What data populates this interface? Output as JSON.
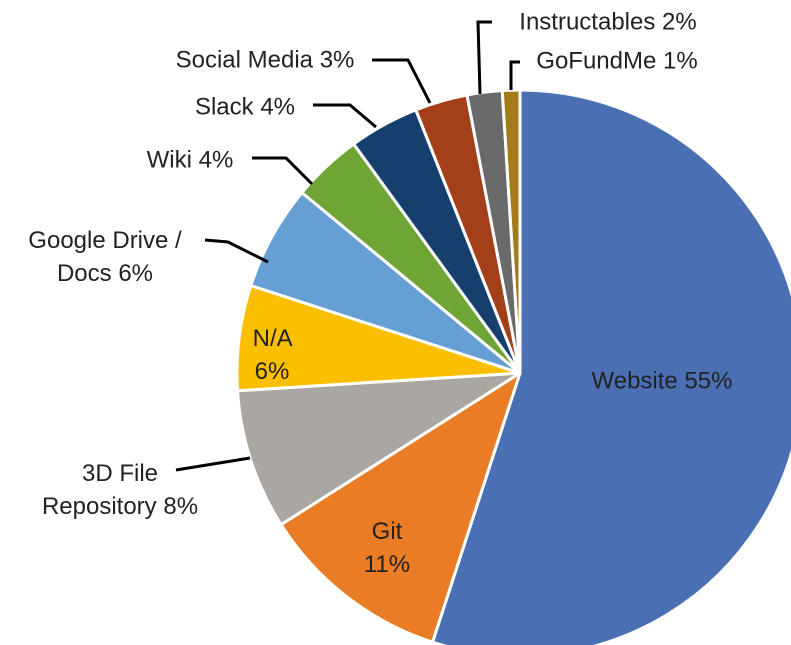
{
  "chart_data": {
    "type": "pie",
    "categories": [
      "Website",
      "Git",
      "3D File Repository",
      "N/A",
      "Google Drive / Docs",
      "Wiki",
      "Slack",
      "Social Media",
      "Instructables",
      "GoFundMe"
    ],
    "values": [
      55,
      11,
      8,
      6,
      6,
      4,
      4,
      3,
      2,
      1
    ],
    "value_labels": [
      "55%",
      "11%",
      "8%",
      "6%",
      "6%",
      "4%",
      "4%",
      "3%",
      "2%",
      "1%"
    ],
    "colors": [
      "#4a70b3",
      "#e97c24",
      "#aaa7a2",
      "#fcbf00",
      "#659fd4",
      "#6ea535",
      "#173f6e",
      "#a3401a",
      "#6a6a6a",
      "#a37c1a"
    ]
  }
}
